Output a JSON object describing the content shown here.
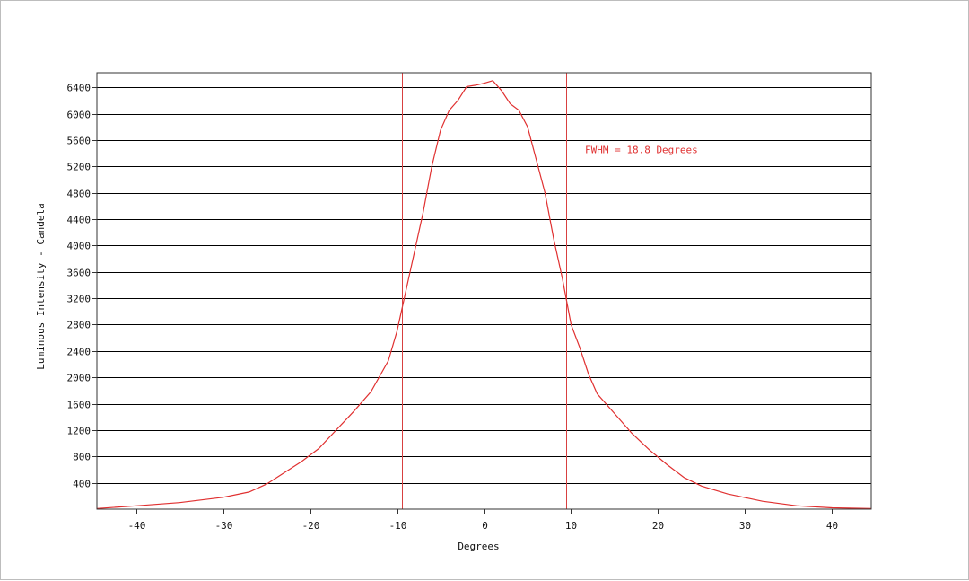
{
  "chart_data": {
    "type": "line",
    "xlabel": "Degrees",
    "ylabel": "Luminous Intensity - Candela",
    "xlim": [
      -44.5,
      44.5
    ],
    "ylim": [
      0,
      6620
    ],
    "x_ticks": [
      -40,
      -30,
      -20,
      -10,
      0,
      10,
      20,
      30,
      40
    ],
    "x_tick_labels": [
      "-40",
      "-30",
      "-20",
      "-10",
      "0",
      "10",
      "20",
      "30",
      "40"
    ],
    "y_ticks": [
      400,
      800,
      1200,
      1600,
      2000,
      2400,
      2800,
      3200,
      3600,
      4000,
      4400,
      4800,
      5200,
      5600,
      6000,
      6400
    ],
    "y_tick_labels": [
      "400",
      "800",
      "1200",
      "1600",
      "2000",
      "2400",
      "2800",
      "3200",
      "3600",
      "4000",
      "4400",
      "4800",
      "5200",
      "5600",
      "6000",
      "6400"
    ],
    "grid": "horizontal",
    "series": [
      {
        "x": [
          -44.5,
          -40,
          -35,
          -30,
          -27,
          -25,
          -23,
          -21,
          -19,
          -17,
          -15,
          -13,
          -11,
          -10,
          -9,
          -8,
          -7,
          -6,
          -5,
          -4,
          -3,
          -2,
          -1,
          0,
          1,
          2,
          3,
          4,
          5,
          6,
          7,
          8,
          9,
          10,
          11,
          12,
          13,
          15,
          17,
          19,
          21,
          23,
          25,
          28,
          32,
          36,
          40,
          44.5
        ],
        "y": [
          10,
          50,
          100,
          180,
          260,
          380,
          550,
          720,
          920,
          1200,
          1480,
          1780,
          2250,
          2700,
          3300,
          3900,
          4500,
          5200,
          5750,
          6050,
          6200,
          6410,
          6430,
          6460,
          6500,
          6350,
          6150,
          6050,
          5800,
          5300,
          4800,
          4100,
          3500,
          2800,
          2450,
          2050,
          1750,
          1450,
          1150,
          900,
          680,
          480,
          350,
          230,
          120,
          50,
          20,
          8
        ]
      }
    ],
    "vertical_markers": [
      -9.4,
      9.4
    ],
    "annotations": [
      {
        "text": "FWHM = 18.8 Degrees",
        "x": 11.6,
        "y": 5400
      }
    ],
    "colors": {
      "line": "#e03030",
      "markers": "#d84040",
      "annotation": "#e03030",
      "grid": "#000000"
    }
  }
}
